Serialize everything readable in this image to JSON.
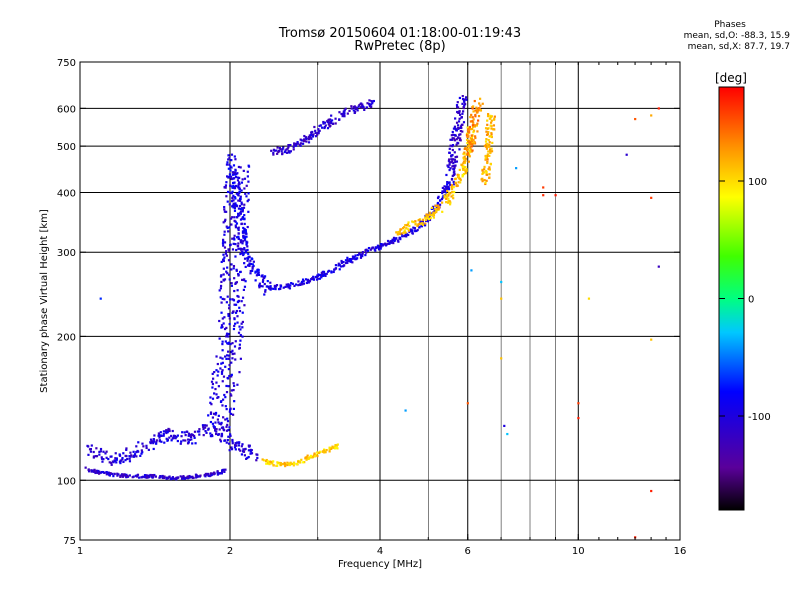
{
  "header": {
    "title_line1": "Tromsø 20150604 01:18:00-01:19:43",
    "title_line2": "RwPretec (8p)"
  },
  "phase_legend": {
    "heading": "Phases",
    "line_o": "mean, sd,O: -88.3, 15.9",
    "line_x": "mean, sd,X:  87.7, 19.7"
  },
  "colorbar": {
    "label": "[deg]",
    "ticks": [
      "100",
      "0",
      "-100"
    ],
    "tick_values": [
      100,
      0,
      -100
    ],
    "range": [
      -180,
      180
    ],
    "colormap": "rainbow"
  },
  "chart_data": {
    "type": "scatter",
    "xlabel": "Frequency [MHz]",
    "ylabel": "Stationary phase Virtual Height [km]",
    "xscale": "log",
    "yscale": "log",
    "xlim": [
      1,
      16
    ],
    "ylim": [
      75,
      750
    ],
    "xticks": [
      1,
      2,
      4,
      6,
      10,
      16
    ],
    "xtick_labels": [
      "1",
      "2",
      "4",
      "6",
      "10",
      "16"
    ],
    "yticks": [
      75,
      100,
      200,
      300,
      400,
      500,
      600,
      750
    ],
    "ytick_labels": [
      "75",
      "100",
      "200",
      "300",
      "400",
      "500",
      "600",
      "750"
    ],
    "grid": true,
    "point_color_encodes": "phase [deg]",
    "traces": [
      {
        "x": [
          1.02,
          1.08,
          1.15,
          1.25,
          1.4,
          1.55,
          1.7,
          1.85,
          1.97
        ],
        "y": [
          106,
          104,
          103,
          102,
          102,
          101,
          102,
          103,
          105
        ],
        "phase": -110,
        "spread": 3
      },
      {
        "x": [
          1.05,
          1.2,
          1.35,
          1.5,
          1.65,
          1.8,
          1.95,
          2.05,
          2.15,
          2.25
        ],
        "y": [
          115,
          110,
          118,
          125,
          122,
          128,
          125,
          118,
          115,
          112
        ],
        "phase": -105,
        "spread": 12
      },
      {
        "x": [
          1.9,
          1.95,
          2.0,
          2.02,
          2.04,
          2.06,
          2.08
        ],
        "y": [
          130,
          160,
          190,
          240,
          300,
          380,
          450
        ],
        "phase": -100,
        "spread": 25
      },
      {
        "x": [
          2.0,
          2.05,
          2.1,
          2.15,
          2.25,
          2.4
        ],
        "y": [
          470,
          400,
          340,
          300,
          270,
          250
        ],
        "phase": -95,
        "spread": 10
      },
      {
        "x": [
          2.4,
          2.6,
          2.9,
          3.2,
          3.5,
          3.8,
          4.1,
          4.5,
          4.9,
          5.2,
          5.5
        ],
        "y": [
          252,
          255,
          262,
          275,
          290,
          302,
          312,
          325,
          345,
          375,
          420
        ],
        "phase": -100,
        "spread": 5
      },
      {
        "x": [
          5.5,
          5.6,
          5.7,
          5.8,
          5.85
        ],
        "y": [
          420,
          470,
          530,
          580,
          630
        ],
        "phase": -110,
        "spread": 10
      },
      {
        "x": [
          2.4,
          2.6,
          2.8,
          3.0,
          3.3,
          3.6,
          3.9
        ],
        "y": [
          485,
          490,
          510,
          540,
          575,
          600,
          620
        ],
        "phase": -110,
        "spread": 8
      },
      {
        "x": [
          4.3,
          4.6,
          5.0,
          5.4,
          5.8,
          6.0,
          6.1
        ],
        "y": [
          330,
          340,
          355,
          380,
          430,
          480,
          540
        ],
        "phase": 110,
        "spread": 8
      },
      {
        "x": [
          6.0,
          6.1,
          6.2,
          6.3
        ],
        "y": [
          480,
          520,
          580,
          630
        ],
        "phase": 130,
        "spread": 10
      },
      {
        "x": [
          6.5,
          6.6,
          6.7
        ],
        "y": [
          420,
          500,
          580
        ],
        "phase": 115,
        "spread": 8
      },
      {
        "x": [
          2.3,
          2.5,
          2.7,
          2.9,
          3.1,
          3.3
        ],
        "y": [
          110,
          108,
          108,
          112,
          115,
          118
        ],
        "phase": 105,
        "spread": 4
      }
    ],
    "sparse_points": [
      {
        "x": 8.5,
        "y": 410,
        "phase": 160
      },
      {
        "x": 8.5,
        "y": 395,
        "phase": 165
      },
      {
        "x": 9.0,
        "y": 395,
        "phase": 170
      },
      {
        "x": 10.5,
        "y": 240,
        "phase": 100
      },
      {
        "x": 12.5,
        "y": 480,
        "phase": -110
      },
      {
        "x": 13.0,
        "y": 570,
        "phase": 150
      },
      {
        "x": 14.0,
        "y": 580,
        "phase": 120
      },
      {
        "x": 14.0,
        "y": 390,
        "phase": 160
      },
      {
        "x": 14.0,
        "y": 197,
        "phase": 110
      },
      {
        "x": 14.5,
        "y": 600,
        "phase": 170
      },
      {
        "x": 14.5,
        "y": 280,
        "phase": -120
      },
      {
        "x": 7.0,
        "y": 260,
        "phase": -30
      },
      {
        "x": 7.1,
        "y": 130,
        "phase": -100
      },
      {
        "x": 7.2,
        "y": 125,
        "phase": -30
      },
      {
        "x": 7.5,
        "y": 450,
        "phase": -40
      },
      {
        "x": 6.0,
        "y": 145,
        "phase": 150
      },
      {
        "x": 7.0,
        "y": 180,
        "phase": 110
      },
      {
        "x": 10.0,
        "y": 145,
        "phase": 160
      },
      {
        "x": 10.0,
        "y": 135,
        "phase": 170
      },
      {
        "x": 14.0,
        "y": 95,
        "phase": 170
      },
      {
        "x": 13.0,
        "y": 76,
        "phase": 170
      },
      {
        "x": 4.5,
        "y": 140,
        "phase": -40
      },
      {
        "x": 6.1,
        "y": 275,
        "phase": -40
      },
      {
        "x": 7.0,
        "y": 240,
        "phase": 110
      },
      {
        "x": 1.1,
        "y": 240,
        "phase": -70
      }
    ]
  }
}
